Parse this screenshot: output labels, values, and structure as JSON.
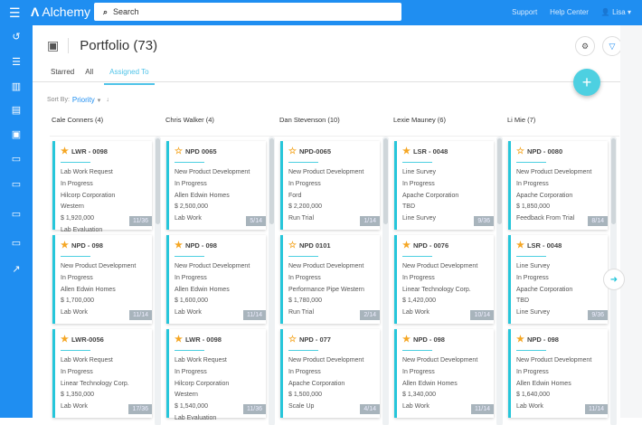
{
  "app": {
    "name": "Alchemy",
    "search_placeholder": "Search",
    "links": [
      "Support",
      "Help Center"
    ],
    "user": "Lisa"
  },
  "colors": {
    "brand": "#1f8ef1",
    "accent": "#26c6da",
    "star": "#f5a623"
  },
  "sidebar": {
    "icons": [
      "history-icon",
      "checklist-icon",
      "chart-icon",
      "contact-card-icon",
      "archive-icon",
      "folder-icon",
      "folder-icon",
      "folder-icon",
      "folder-icon",
      "trend-icon"
    ]
  },
  "page": {
    "title": "Portfolio (73)",
    "tabs": [
      "Starred",
      "All",
      "Assigned To"
    ],
    "active_tab": "Assigned To",
    "sort_label": "Sort By:",
    "sort_value": "Priority"
  },
  "columns": [
    {
      "name": "Cale Conners (4)",
      "cards": [
        {
          "code": "LWR - 0098",
          "starred": true,
          "lines": [
            "Lab Work Request",
            "In Progress",
            "Hilcorp Corporation",
            "Western",
            "$ 1,920,000",
            "Lab Evaluation"
          ],
          "badge": "11/36"
        },
        {
          "code": "NPD - 098",
          "starred": true,
          "lines": [
            "New Product Development",
            "In Progress",
            "Allen Edwin Homes",
            "$ 1,700,000",
            "Lab Work"
          ],
          "badge": "11/14"
        },
        {
          "code": "LWR-0056",
          "starred": true,
          "lines": [
            "Lab Work Request",
            "In Progress",
            "Linear Technology Corp.",
            "$ 1,350,000",
            "Lab Work"
          ],
          "badge": "17/36"
        }
      ]
    },
    {
      "name": "Chris Walker (4)",
      "cards": [
        {
          "code": "NPD 0065",
          "starred": false,
          "lines": [
            "New Product Development",
            "In Progress",
            "Allen Edwin Homes",
            "$ 2,500,000",
            "Lab Work"
          ],
          "badge": "5/14"
        },
        {
          "code": "NPD - 098",
          "starred": true,
          "lines": [
            "New Product Development",
            "In Progress",
            "Allen Edwin Homes",
            "$ 1,600,000",
            "Lab Work"
          ],
          "badge": "11/14"
        },
        {
          "code": "LWR - 0098",
          "starred": true,
          "lines": [
            "Lab Work Request",
            "In Progress",
            "Hilcorp Corporation",
            "Western",
            "$ 1,540,000",
            "Lab Evaluation"
          ],
          "badge": "11/36"
        }
      ]
    },
    {
      "name": "Dan Stevenson (10)",
      "cards": [
        {
          "code": "NPD-0065",
          "starred": false,
          "lines": [
            "New Product Development",
            "In Progress",
            "Ford",
            "$ 2,200,000",
            "Run Trial"
          ],
          "badge": "1/14"
        },
        {
          "code": "NPD 0101",
          "starred": false,
          "lines": [
            "New Product Development",
            "In Progress",
            "Performance Pipe Western",
            "$ 1,780,000",
            "Run Trial"
          ],
          "badge": "2/14"
        },
        {
          "code": "NPD - 077",
          "starred": false,
          "lines": [
            "New Product Development",
            "In Progress",
            "Apache Corporation",
            "$ 1,500,000",
            "Scale Up"
          ],
          "badge": "4/14"
        }
      ]
    },
    {
      "name": "Lexie Mauney (6)",
      "cards": [
        {
          "code": "LSR - 0048",
          "starred": true,
          "lines": [
            "Line Survey",
            "In Progress",
            "Apache Corporation",
            "TBD",
            "Line Survey"
          ],
          "badge": "9/36"
        },
        {
          "code": "NPD - 0076",
          "starred": true,
          "lines": [
            "New Product Development",
            "In Progress",
            "Linear Technology Corp.",
            "$ 1,420,000",
            "Lab Work"
          ],
          "badge": "10/14"
        },
        {
          "code": "NPD - 098",
          "starred": true,
          "lines": [
            "New Product Development",
            "In Progress",
            "Allen Edwin Homes",
            "$ 1,340,000",
            "Lab Work"
          ],
          "badge": "11/14"
        }
      ]
    },
    {
      "name": "Li Mie (7)",
      "cards": [
        {
          "code": "NPD - 0080",
          "starred": false,
          "lines": [
            "New Product Development",
            "In Progress",
            "Apache Corporation",
            "$ 1,850,000",
            "Feedback From Trial"
          ],
          "badge": "8/14"
        },
        {
          "code": "LSR - 0048",
          "starred": true,
          "lines": [
            "Line Survey",
            "In Progress",
            "Apache Corporation",
            "TBD",
            "Line Survey"
          ],
          "badge": "9/36"
        },
        {
          "code": "NPD - 098",
          "starred": true,
          "lines": [
            "New Product Development",
            "In Progress",
            "Allen Edwin Homes",
            "$ 1,640,000",
            "Lab Work"
          ],
          "badge": "11/14"
        }
      ]
    }
  ]
}
